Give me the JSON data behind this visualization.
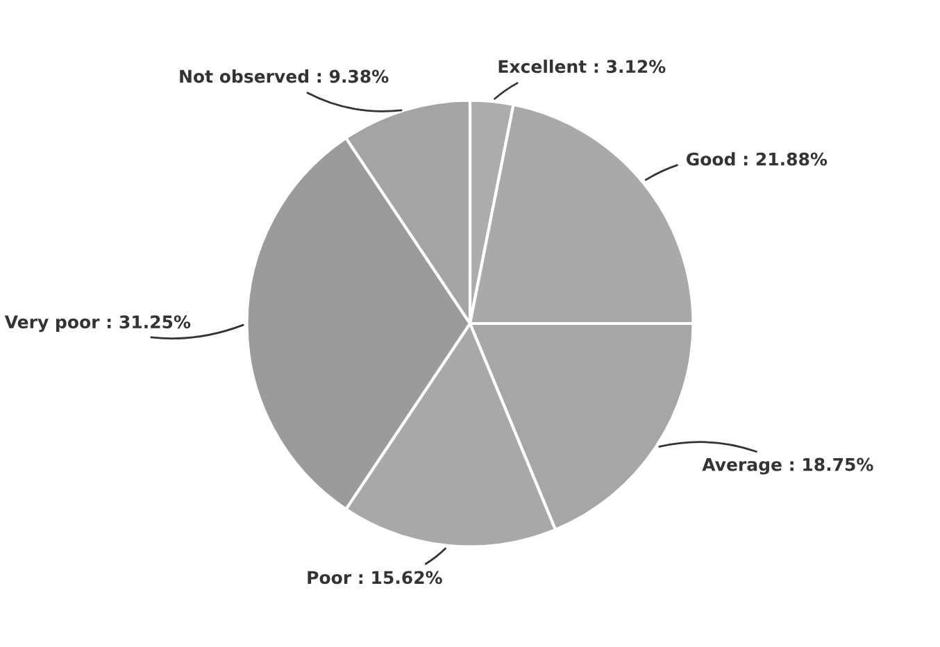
{
  "chart_data": {
    "type": "pie",
    "categories": [
      "Excellent",
      "Good",
      "Average",
      "Poor",
      "Very poor",
      "Not observed"
    ],
    "values": [
      3.12,
      21.88,
      18.75,
      15.62,
      31.25,
      9.38
    ],
    "value_labels": [
      "3.12%",
      "21.88%",
      "18.75%",
      "15.62%",
      "31.25%",
      "9.38%"
    ],
    "colors": [
      "#acacac",
      "#a9a9a9",
      "#a6a6a6",
      "#a8a8a8",
      "#9b9b9b",
      "#a4a4a4"
    ]
  }
}
